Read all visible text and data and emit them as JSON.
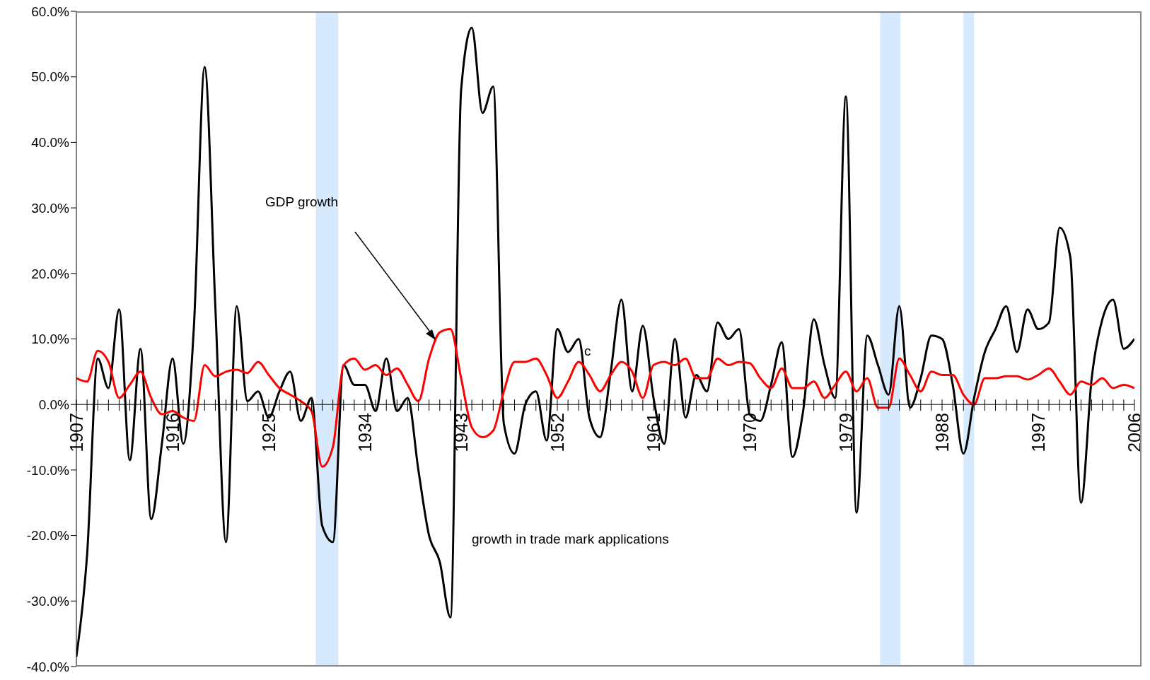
{
  "chart_data": {
    "type": "line",
    "x": [
      1907,
      1908,
      1909,
      1910,
      1911,
      1912,
      1913,
      1914,
      1915,
      1916,
      1917,
      1918,
      1919,
      1920,
      1921,
      1922,
      1923,
      1924,
      1925,
      1926,
      1927,
      1928,
      1929,
      1930,
      1931,
      1932,
      1933,
      1934,
      1935,
      1936,
      1937,
      1938,
      1939,
      1940,
      1941,
      1942,
      1943,
      1944,
      1945,
      1946,
      1947,
      1948,
      1949,
      1950,
      1951,
      1952,
      1953,
      1954,
      1955,
      1956,
      1957,
      1958,
      1959,
      1960,
      1961,
      1962,
      1963,
      1964,
      1965,
      1966,
      1967,
      1968,
      1969,
      1970,
      1971,
      1972,
      1973,
      1974,
      1975,
      1976,
      1977,
      1978,
      1979,
      1980,
      1981,
      1982,
      1983,
      1984,
      1985,
      1986,
      1987,
      1988,
      1989,
      1990,
      1991,
      1992,
      1993,
      1994,
      1995,
      1996,
      1997,
      1998,
      1999,
      2000,
      2001,
      2002,
      2003,
      2004,
      2005,
      2006
    ],
    "series": [
      {
        "name": "growth in trade mark applications",
        "color": "#000000",
        "values": [
          -38.5,
          -23,
          7,
          2.5,
          14.5,
          -8.5,
          8.5,
          -17.5,
          -6,
          7,
          -6,
          12,
          51.5,
          15,
          -21,
          15,
          0.5,
          2,
          -2,
          2,
          5,
          -2.5,
          1,
          -18.5,
          -21,
          6,
          3,
          3,
          -1,
          7,
          -1,
          1,
          -10,
          -20,
          -24,
          -32.5,
          48,
          57.5,
          44.5,
          48.5,
          -3,
          -7.5,
          0,
          2,
          -5.5,
          11.5,
          8,
          10,
          -2,
          -5,
          5,
          16,
          2,
          12,
          1,
          -6,
          10,
          -2,
          4.5,
          2,
          12.5,
          10,
          11.5,
          -1.5,
          -2.5,
          3,
          9.5,
          -8,
          -1,
          13,
          6,
          1,
          47,
          -16.5,
          10.5,
          6,
          1.5,
          15,
          -0.5,
          4,
          10.5,
          10,
          3,
          -7.5,
          1,
          8,
          11.5,
          15,
          8,
          14.5,
          11.5,
          12.5,
          27,
          22.5,
          -15,
          4,
          13,
          16,
          8.5,
          10
        ]
      },
      {
        "color": "#ff0000",
        "values": [
          4,
          3.5,
          8.2,
          6.5,
          1,
          3,
          5,
          1,
          -1.5,
          -1,
          -2,
          -2.5,
          6,
          4.3,
          5,
          5.3,
          4.8,
          6.5,
          4.5,
          2.5,
          1.5,
          0.5,
          -1,
          -9.5,
          -6.5,
          6,
          7,
          5.3,
          6,
          4.5,
          5.5,
          3,
          0.5,
          7,
          11,
          11.5,
          4,
          -3.5,
          -5,
          -4,
          2,
          6.5,
          6.5,
          7,
          4.5,
          1,
          3.5,
          6.5,
          4.5,
          2,
          4.5,
          6.5,
          5,
          1,
          6,
          6.5,
          6,
          7,
          4,
          4,
          7,
          6,
          6.5,
          6.3,
          4,
          2.5,
          5.5,
          2.5,
          2.5,
          3.5,
          1,
          3,
          5,
          2,
          4,
          -0.5,
          -0.5,
          7,
          4.5,
          2,
          5,
          4.5,
          4.5,
          1.5,
          0,
          4,
          4,
          4.3,
          4.3,
          3.8,
          4.5,
          5.5,
          3.5,
          1.5,
          3.5,
          3,
          4,
          2.5,
          3,
          2.5
        ]
      }
    ],
    "xlim": [
      1907,
      2006
    ],
    "xticks": [
      1907,
      {
        "value": 1908,
        "label": null
      },
      {
        "value": 1909,
        "label": null
      },
      {
        "value": 1910,
        "label": null
      },
      {
        "value": 1911,
        "label": null
      },
      {
        "value": 1912,
        "label": null
      },
      {
        "value": 1913,
        "label": null
      },
      {
        "value": 1914,
        "label": null
      },
      {
        "value": 1915,
        "label": null
      },
      1916,
      {
        "value": 1917,
        "label": null
      },
      {
        "value": 1918,
        "label": null
      },
      {
        "value": 1919,
        "label": null
      },
      {
        "value": 1920,
        "label": null
      },
      {
        "value": 1921,
        "label": null
      },
      {
        "value": 1922,
        "label": null
      },
      {
        "value": 1923,
        "label": null
      },
      {
        "value": 1924,
        "label": null
      },
      1925,
      {
        "value": 1926,
        "label": null
      },
      {
        "value": 1927,
        "label": null
      },
      {
        "value": 1928,
        "label": null
      },
      {
        "value": 1929,
        "label": null
      },
      {
        "value": 1930,
        "label": null
      },
      {
        "value": 1931,
        "label": null
      },
      {
        "value": 1932,
        "label": null
      },
      {
        "value": 1933,
        "label": null
      },
      1934,
      {
        "value": 1935,
        "label": null
      },
      {
        "value": 1936,
        "label": null
      },
      {
        "value": 1937,
        "label": null
      },
      {
        "value": 1938,
        "label": null
      },
      {
        "value": 1939,
        "label": null
      },
      {
        "value": 1940,
        "label": null
      },
      {
        "value": 1941,
        "label": null
      },
      {
        "value": 1942,
        "label": null
      },
      1943,
      {
        "value": 1944,
        "label": null
      },
      {
        "value": 1945,
        "label": null
      },
      {
        "value": 1946,
        "label": null
      },
      {
        "value": 1947,
        "label": null
      },
      {
        "value": 1948,
        "label": null
      },
      {
        "value": 1949,
        "label": null
      },
      {
        "value": 1950,
        "label": null
      },
      {
        "value": 1951,
        "label": null
      },
      1952,
      {
        "value": 1953,
        "label": null
      },
      {
        "value": 1954,
        "label": null
      },
      {
        "value": 1955,
        "label": null
      },
      {
        "value": 1956,
        "label": null
      },
      {
        "value": 1957,
        "label": null
      },
      {
        "value": 1958,
        "label": null
      },
      {
        "value": 1959,
        "label": null
      },
      {
        "value": 1960,
        "label": null
      },
      1961,
      {
        "value": 1962,
        "label": null
      },
      {
        "value": 1963,
        "label": null
      },
      {
        "value": 1964,
        "label": null
      },
      {
        "value": 1965,
        "label": null
      },
      {
        "value": 1966,
        "label": null
      },
      {
        "value": 1967,
        "label": null
      },
      {
        "value": 1968,
        "label": null
      },
      {
        "value": 1969,
        "label": null
      },
      1970,
      {
        "value": 1971,
        "label": null
      },
      {
        "value": 1972,
        "label": null
      },
      {
        "value": 1973,
        "label": null
      },
      {
        "value": 1974,
        "label": null
      },
      {
        "value": 1975,
        "label": null
      },
      {
        "value": 1976,
        "label": null
      },
      {
        "value": 1977,
        "label": null
      },
      {
        "value": 1978,
        "label": null
      },
      1979,
      {
        "value": 1980,
        "label": null
      },
      {
        "value": 1981,
        "label": null
      },
      {
        "value": 1982,
        "label": null
      },
      {
        "value": 1983,
        "label": null
      },
      {
        "value": 1984,
        "label": null
      },
      {
        "value": 1985,
        "label": null
      },
      {
        "value": 1986,
        "label": null
      },
      {
        "value": 1987,
        "label": null
      },
      1988,
      {
        "value": 1989,
        "label": null
      },
      {
        "value": 1990,
        "label": null
      },
      {
        "value": 1991,
        "label": null
      },
      {
        "value": 1992,
        "label": null
      },
      {
        "value": 1993,
        "label": null
      },
      {
        "value": 1994,
        "label": null
      },
      {
        "value": 1995,
        "label": null
      },
      {
        "value": 1996,
        "label": null
      },
      1997,
      {
        "value": 1998,
        "label": null
      },
      {
        "value": 1999,
        "label": null
      },
      {
        "value": 2000,
        "label": null
      },
      {
        "value": 2001,
        "label": null
      },
      {
        "value": 2002,
        "label": null
      },
      {
        "value": 2003,
        "label": null
      },
      {
        "value": 2004,
        "label": null
      },
      {
        "value": 2005,
        "label": null
      },
      2006
    ],
    "ylim": [
      -40,
      60
    ],
    "yticks": [
      {
        "value": -40,
        "label": "-40.0%"
      },
      {
        "value": -30,
        "label": "-30.0%"
      },
      {
        "value": -20,
        "label": "-20.0%"
      },
      {
        "value": -10,
        "label": "-10.0%"
      },
      {
        "value": 0,
        "label": "0.0%"
      },
      {
        "value": 10,
        "label": "10.0%"
      },
      {
        "value": 20,
        "label": "20.0%"
      },
      {
        "value": 30,
        "label": "30.0%"
      },
      {
        "value": 40,
        "label": "40.0%"
      },
      {
        "value": 50,
        "label": "50.0%"
      },
      {
        "value": 60,
        "label": "60.0%"
      }
    ],
    "bands": [
      {
        "axis": "x",
        "from": 1929.4,
        "to": 1931.5,
        "color": "#cce4fc"
      },
      {
        "axis": "x",
        "from": 1982.2,
        "to": 1984.1,
        "color": "#cce4fc"
      },
      {
        "axis": "x",
        "from": 1990.0,
        "to": 1991.0,
        "color": "#cce4fc"
      }
    ],
    "annotations": [
      "GDP growth",
      "c"
    ],
    "marker": "none",
    "line_style": "solid"
  }
}
